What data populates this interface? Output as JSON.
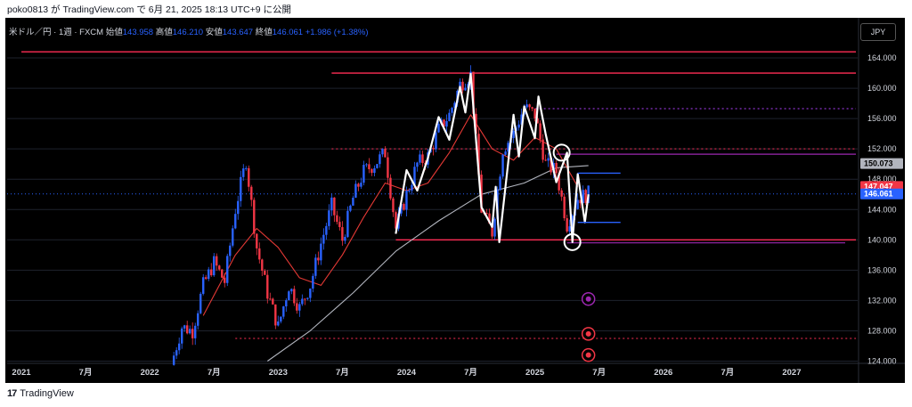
{
  "caption": "poko0813 が TradingView.com で 6月 21, 2025 18:13 UTC+9 に公開",
  "brand": {
    "logo": "17",
    "name": "TradingView"
  },
  "legend": {
    "symbol": "米ドル／円 · 1週 · FXCM",
    "open_label": "始値",
    "open": "143.958",
    "high_label": "高値",
    "high": "146.210",
    "low_label": "安値",
    "low": "143.647",
    "close_label": "終値",
    "close": "146.061",
    "change": "+1.986 (+1.38%)"
  },
  "currency_button": "JPY",
  "colors": {
    "up": "#2962ff",
    "down": "#f23645",
    "ma_fast": "#e53935",
    "ma_slow": "#b2b5be",
    "zigzag": "#ffffff",
    "hline": "#ff2d55",
    "bg": "#000000"
  },
  "chart_data": {
    "type": "candlestick",
    "title": "米ドル／円 · 1週 · FXCM",
    "ylim": [
      123,
      166
    ],
    "yticks": [
      "164.000",
      "160.000",
      "156.000",
      "152.000",
      "148.000",
      "144.000",
      "140.000",
      "136.000",
      "132.000",
      "128.000",
      "124.000"
    ],
    "ytick_values": [
      164,
      160,
      156,
      152,
      148,
      144,
      140,
      136,
      132,
      128,
      124
    ],
    "x_range": [
      "2021-01",
      "2027-07"
    ],
    "xticks": [
      {
        "label": "2021",
        "date": "2021-01"
      },
      {
        "label": "7月",
        "date": "2021-07"
      },
      {
        "label": "2022",
        "date": "2022-01"
      },
      {
        "label": "7月",
        "date": "2022-07"
      },
      {
        "label": "2023",
        "date": "2023-01"
      },
      {
        "label": "7月",
        "date": "2023-07"
      },
      {
        "label": "2024",
        "date": "2024-01"
      },
      {
        "label": "7月",
        "date": "2024-07"
      },
      {
        "label": "2025",
        "date": "2025-01"
      },
      {
        "label": "7月",
        "date": "2025-07"
      },
      {
        "label": "2026",
        "date": "2026-01"
      },
      {
        "label": "7月",
        "date": "2026-07"
      },
      {
        "label": "2027",
        "date": "2027-01"
      }
    ],
    "price_path": [
      [
        "2022-03",
        123.5
      ],
      [
        "2022-04",
        128.5
      ],
      [
        "2022-05",
        128
      ],
      [
        "2022-06",
        134
      ],
      [
        "2022-07",
        137
      ],
      [
        "2022-08",
        134.5
      ],
      [
        "2022-09",
        144
      ],
      [
        "2022-10",
        150.5
      ],
      [
        "2022-11",
        139
      ],
      [
        "2022-12",
        133
      ],
      [
        "2023-01",
        128.5
      ],
      [
        "2023-02",
        134
      ],
      [
        "2023-03",
        131
      ],
      [
        "2023-04",
        134
      ],
      [
        "2023-05",
        139.5
      ],
      [
        "2023-06",
        144.5
      ],
      [
        "2023-07",
        140
      ],
      [
        "2023-08",
        145.5
      ],
      [
        "2023-09",
        149
      ],
      [
        "2023-10",
        150
      ],
      [
        "2023-11",
        151.5
      ],
      [
        "2023-12",
        141.5
      ],
      [
        "2024-01",
        146
      ],
      [
        "2024-02",
        150
      ],
      [
        "2024-03",
        151
      ],
      [
        "2024-04",
        154.5
      ],
      [
        "2024-05",
        156.5
      ],
      [
        "2024-06",
        160.5
      ],
      [
        "2024-07",
        161.8
      ],
      [
        "2024-08",
        144
      ],
      [
        "2024-09",
        141
      ],
      [
        "2024-10",
        152
      ],
      [
        "2024-11",
        154
      ],
      [
        "2024-12",
        157.5
      ],
      [
        "2025-01",
        156.5
      ],
      [
        "2025-02",
        150
      ],
      [
        "2025-03",
        149
      ],
      [
        "2025-04",
        142
      ],
      [
        "2025-05",
        145.5
      ],
      [
        "2025-06",
        146.06
      ]
    ],
    "ma_fast": [
      [
        "2022-06",
        130
      ],
      [
        "2022-09",
        138
      ],
      [
        "2022-11",
        141.5
      ],
      [
        "2023-01",
        139
      ],
      [
        "2023-03",
        135
      ],
      [
        "2023-05",
        134
      ],
      [
        "2023-07",
        138
      ],
      [
        "2023-09",
        143
      ],
      [
        "2023-11",
        147.5
      ],
      [
        "2024-01",
        146.5
      ],
      [
        "2024-03",
        147.5
      ],
      [
        "2024-05",
        151.5
      ],
      [
        "2024-07",
        156.5
      ],
      [
        "2024-09",
        152
      ],
      [
        "2024-11",
        150.5
      ],
      [
        "2025-01",
        153.5
      ],
      [
        "2025-03",
        152
      ],
      [
        "2025-05",
        147
      ]
    ],
    "ma_slow": [
      [
        "2022-12",
        124
      ],
      [
        "2023-04",
        128
      ],
      [
        "2023-08",
        133
      ],
      [
        "2023-12",
        138.5
      ],
      [
        "2024-04",
        142.5
      ],
      [
        "2024-08",
        146
      ],
      [
        "2024-12",
        147.5
      ],
      [
        "2025-03",
        149.5
      ],
      [
        "2025-06",
        149.8
      ]
    ],
    "zigzag": [
      [
        "2023-12",
        140.8
      ],
      [
        "2024-01",
        149.2
      ],
      [
        "2024-02",
        146.5
      ],
      [
        "2024-03",
        150.8
      ],
      [
        "2024-04",
        156.2
      ],
      [
        "2024-05",
        153.2
      ],
      [
        "2024-06",
        160.2
      ],
      [
        "2024-06-15",
        156.8
      ],
      [
        "2024-07",
        161.9
      ],
      [
        "2024-08",
        144.3
      ],
      [
        "2024-09",
        141.7
      ],
      [
        "2024-09-10",
        147.0
      ],
      [
        "2024-09-20",
        139.7
      ],
      [
        "2024-11",
        156.5
      ],
      [
        "2024-11-15",
        151.0
      ],
      [
        "2024-12",
        157.6
      ],
      [
        "2025-01",
        153.4
      ],
      [
        "2025-01-10",
        158.9
      ],
      [
        "2025-02",
        154.0
      ],
      [
        "2025-03",
        147.6
      ],
      [
        "2025-04",
        151.5
      ],
      [
        "2025-04-15",
        139.7
      ],
      [
        "2025-05",
        148.7
      ],
      [
        "2025-05-20",
        142.3
      ],
      [
        "2025-06",
        146.0
      ]
    ],
    "hlines": [
      {
        "value": 164.8,
        "from": "2021-01",
        "to": "2027-07",
        "style": "solid"
      },
      {
        "value": 162.0,
        "from": "2023-06",
        "to": "2027-07",
        "style": "solid"
      },
      {
        "value": 157.3,
        "from": "2025-01",
        "to": "2027-07",
        "style": "dotted-purple"
      },
      {
        "value": 152.0,
        "from": "2023-06",
        "to": "2027-07",
        "style": "dotted"
      },
      {
        "value": 151.3,
        "from": "2025-03",
        "to": "2027-07",
        "style": "solid-purple"
      },
      {
        "value": 140.0,
        "from": "2023-12",
        "to": "2027-07",
        "style": "solid"
      },
      {
        "value": 139.6,
        "from": "2025-04",
        "to": "2027-06",
        "style": "solid-purple"
      },
      {
        "value": 127.0,
        "from": "2022-09",
        "to": "2027-07",
        "style": "dotted"
      }
    ],
    "short_lines": [
      {
        "value": 148.8,
        "from": "2025-05",
        "to": "2025-09",
        "color": "#2962ff"
      },
      {
        "value": 142.3,
        "from": "2025-05",
        "to": "2025-09",
        "color": "#2962ff"
      }
    ],
    "circles": [
      {
        "date": "2025-03-15",
        "value": 151.5
      },
      {
        "date": "2025-04-15",
        "value": 139.7
      }
    ],
    "price_tags": [
      {
        "value": 150.073,
        "label": "150.073",
        "bg": "#b2b5be",
        "fg": "#000000"
      },
      {
        "value": 147.047,
        "label": "147.047",
        "bg": "#f23645",
        "fg": "#ffffff"
      },
      {
        "value": 146.061,
        "label": "146.061",
        "bg": "#2962ff",
        "fg": "#ffffff"
      }
    ],
    "current_price_line": 146.061,
    "event_icons": [
      {
        "date": "2025-06",
        "value": 132.2,
        "name": "lightning-icon",
        "color": "#9c27b0"
      },
      {
        "date": "2025-06",
        "value": 127.6,
        "name": "us-flag-icon",
        "color": "#f23645"
      },
      {
        "date": "2025-06",
        "value": 124.8,
        "name": "record-icon",
        "color": "#f23645"
      }
    ]
  }
}
